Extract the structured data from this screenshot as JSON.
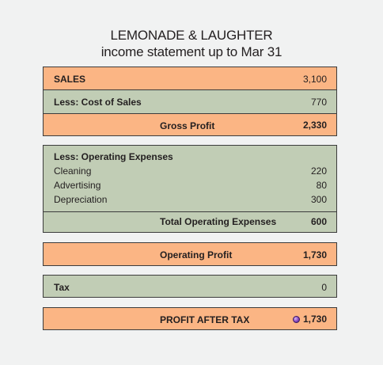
{
  "header": {
    "title": "LEMONADE & LAUGHTER",
    "subtitle": "income statement up to Mar 31"
  },
  "sales": {
    "label": "SALES",
    "value": "3,100"
  },
  "cost_of_sales": {
    "label": "Less: Cost of Sales",
    "value": "770"
  },
  "gross_profit": {
    "label": "Gross Profit",
    "value": "2,330"
  },
  "operating_expenses": {
    "heading": "Less: Operating Expenses",
    "items": [
      {
        "label": "Cleaning",
        "value": "220"
      },
      {
        "label": "Advertising",
        "value": "80"
      },
      {
        "label": "Depreciation",
        "value": "300"
      }
    ],
    "total_label": "Total Operating Expenses",
    "total_value": "600"
  },
  "operating_profit": {
    "label": "Operating Profit",
    "value": "1,730"
  },
  "tax": {
    "label": "Tax",
    "value": "0"
  },
  "profit_after_tax": {
    "label": "PROFIT AFTER TAX",
    "value": "1,730",
    "icon": "purple-coin-icon"
  },
  "colors": {
    "orange_row": "#fbb584",
    "green_row": "#c1cdb5",
    "border": "#3c3c3c",
    "background": "#f1f2f2"
  }
}
